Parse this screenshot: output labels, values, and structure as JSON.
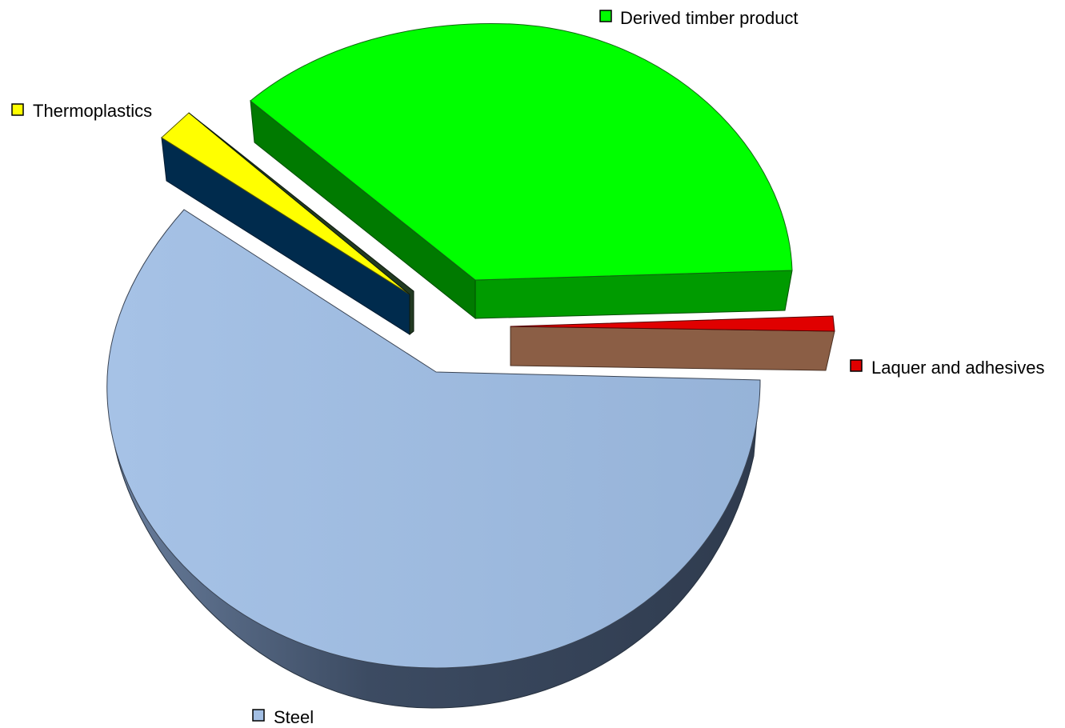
{
  "chart_data": {
    "type": "pie",
    "style": "3d-exploded",
    "title": "",
    "legend": "labels beside slices",
    "slices": [
      {
        "name": "Steel",
        "value": 61.5,
        "color": "#a3bfe4",
        "side_color": "#3c4e65"
      },
      {
        "name": "Thermoplastics",
        "value": 2.0,
        "color": "#ffff00",
        "side_color": "#002b4d"
      },
      {
        "name": "Derived timber product",
        "value": 35.4,
        "color": "#00ff00",
        "side_color": "#009900"
      },
      {
        "name": "Laquer and adhesives",
        "value": 1.1,
        "color": "#e00000",
        "side_color": "#8b5e45"
      }
    ]
  }
}
